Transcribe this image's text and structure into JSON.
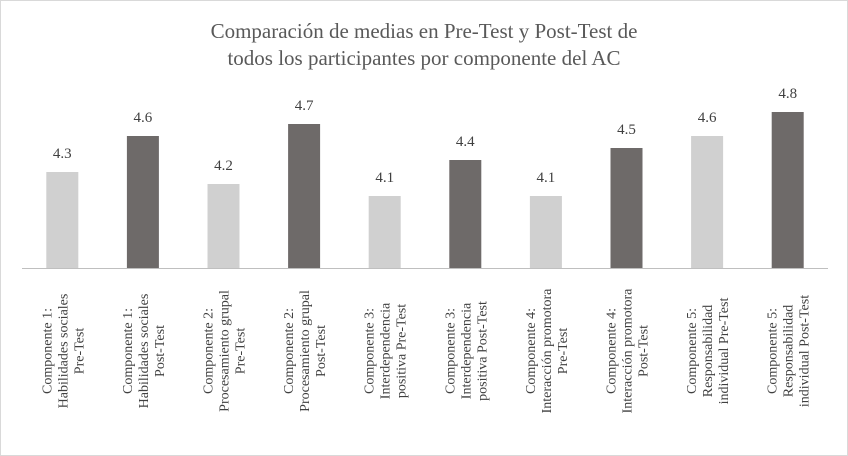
{
  "chart_data": {
    "type": "bar",
    "title": [
      "Comparación de medias en Pre-Test y Post-Test de",
      "todos los participantes por componente del AC"
    ],
    "xlabel": "",
    "ylabel": "",
    "grid": false,
    "legend": "none",
    "ylim": [
      3.5,
      4.9
    ],
    "colors": {
      "pre": "#d0d0d0",
      "post": "#6e6a69",
      "axis": "#bfbfbf"
    },
    "bars": [
      {
        "label": [
          "Componente 1:",
          "Habilidades sociales",
          "Pre-Test"
        ],
        "value": 4.3,
        "value_label": "4.3",
        "group": "pre"
      },
      {
        "label": [
          "Componente 1:",
          "Habilidades sociales",
          "Post-Test"
        ],
        "value": 4.6,
        "value_label": "4.6",
        "group": "post"
      },
      {
        "label": [
          "Componente 2:",
          "Procesamiento grupal",
          "Pre-Test"
        ],
        "value": 4.2,
        "value_label": "4.2",
        "group": "pre"
      },
      {
        "label": [
          "Componente 2:",
          "Procesamiento grupal",
          "Post-Test"
        ],
        "value": 4.7,
        "value_label": "4.7",
        "group": "post"
      },
      {
        "label": [
          "Componente 3:",
          "Interdependencia",
          "positiva Pre-Test"
        ],
        "value": 4.1,
        "value_label": "4.1",
        "group": "pre"
      },
      {
        "label": [
          "Componente 3:",
          "Interdependencia",
          "positiva Post-Test"
        ],
        "value": 4.4,
        "value_label": "4.4",
        "group": "post"
      },
      {
        "label": [
          "Componente 4:",
          "Interacción promotora",
          "Pre-Test"
        ],
        "value": 4.1,
        "value_label": "4.1",
        "group": "pre"
      },
      {
        "label": [
          "Componente 4:",
          "Interacción promotora",
          "Post-Test"
        ],
        "value": 4.5,
        "value_label": "4.5",
        "group": "post"
      },
      {
        "label": [
          "Componente 5:",
          "Responsabilidad",
          "individual Pre-Test"
        ],
        "value": 4.6,
        "value_label": "4.6",
        "group": "pre"
      },
      {
        "label": [
          "Componente 5:",
          "Responsabilidad",
          "individual Post-Test"
        ],
        "value": 4.8,
        "value_label": "4.8",
        "group": "post"
      }
    ]
  }
}
